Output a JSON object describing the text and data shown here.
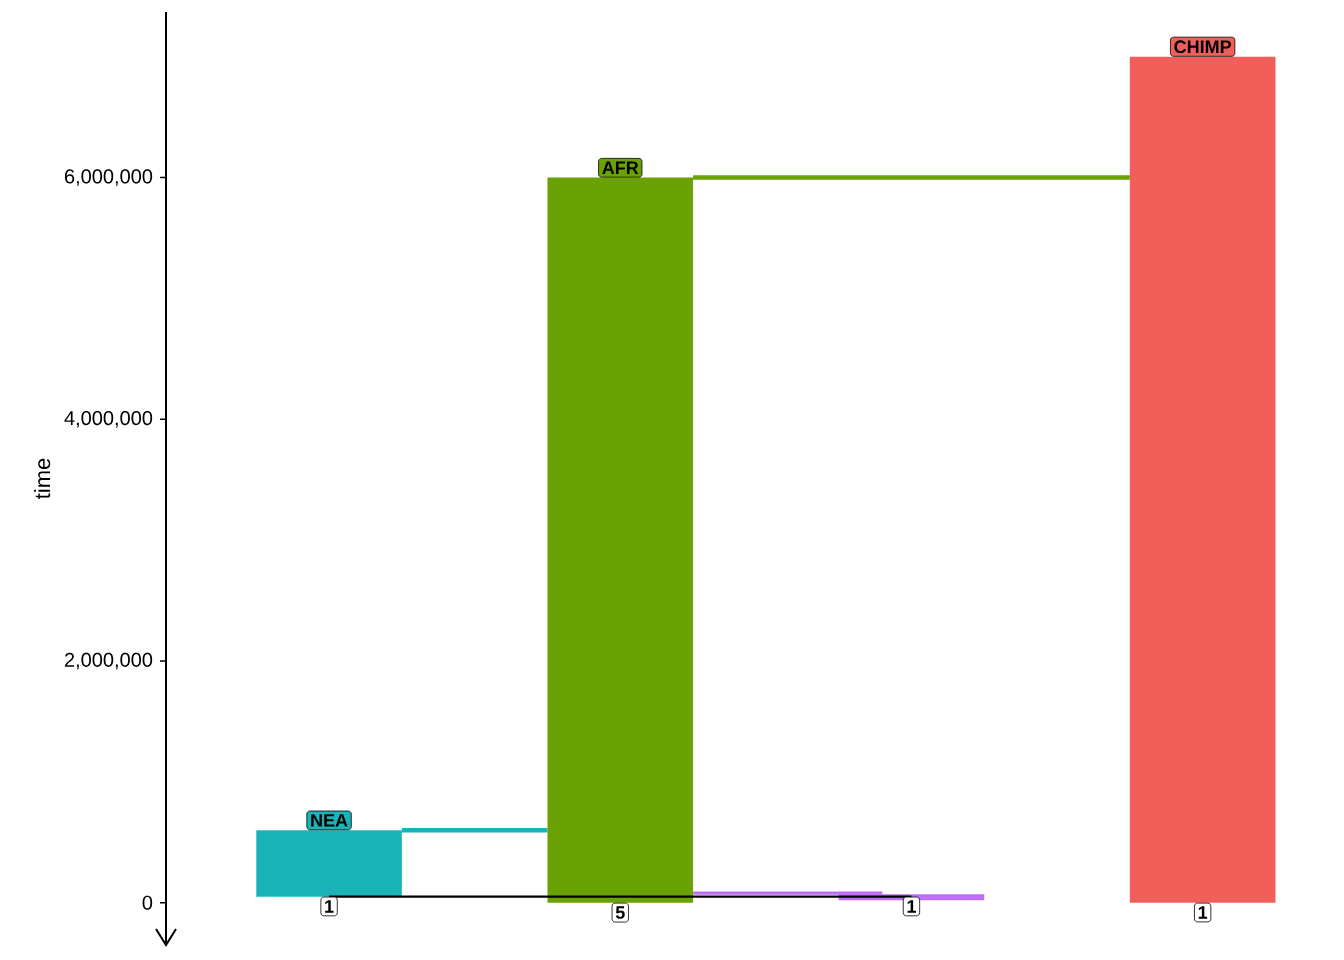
{
  "chart_data": {
    "type": "bar",
    "ylabel": "time",
    "ylim": [
      -350000,
      7370000
    ],
    "yticks": [
      {
        "value": 0,
        "label": "0"
      },
      {
        "value": 2000000,
        "label": "2,000,000"
      },
      {
        "value": 4000000,
        "label": "4,000,000"
      },
      {
        "value": 6000000,
        "label": "6,000,000"
      }
    ],
    "tick_labels": "y",
    "categories": [
      null,
      null,
      null,
      null
    ],
    "base": [
      50000,
      0,
      20000,
      0
    ],
    "values": [
      550000,
      6000000,
      50000,
      7000000
    ],
    "ref_lines": [
      {
        "axis": "y",
        "value": 600000,
        "color": "#1ab4b8"
      },
      {
        "axis": "y",
        "value": 6000000,
        "color": "#6aa204"
      },
      {
        "axis": "y",
        "value": 80000,
        "color": "#c06cf8"
      },
      {
        "axis": "y",
        "value": 50000,
        "color": "#000000"
      }
    ],
    "colors": [
      "#1ab4b8",
      "#6aa204",
      "#c06cf8",
      "#f25f5a"
    ],
    "annotations": [
      {
        "text": "NEA",
        "y": 600000
      },
      {
        "text": "AFR",
        "y": 6000000
      },
      {
        "text": "CHIMP",
        "y": 7000000
      },
      {
        "text": "1",
        "y": 50000
      },
      {
        "text": "5",
        "y": 0
      },
      {
        "text": "1",
        "y": 50000
      },
      {
        "text": "1",
        "y": 0
      }
    ]
  }
}
